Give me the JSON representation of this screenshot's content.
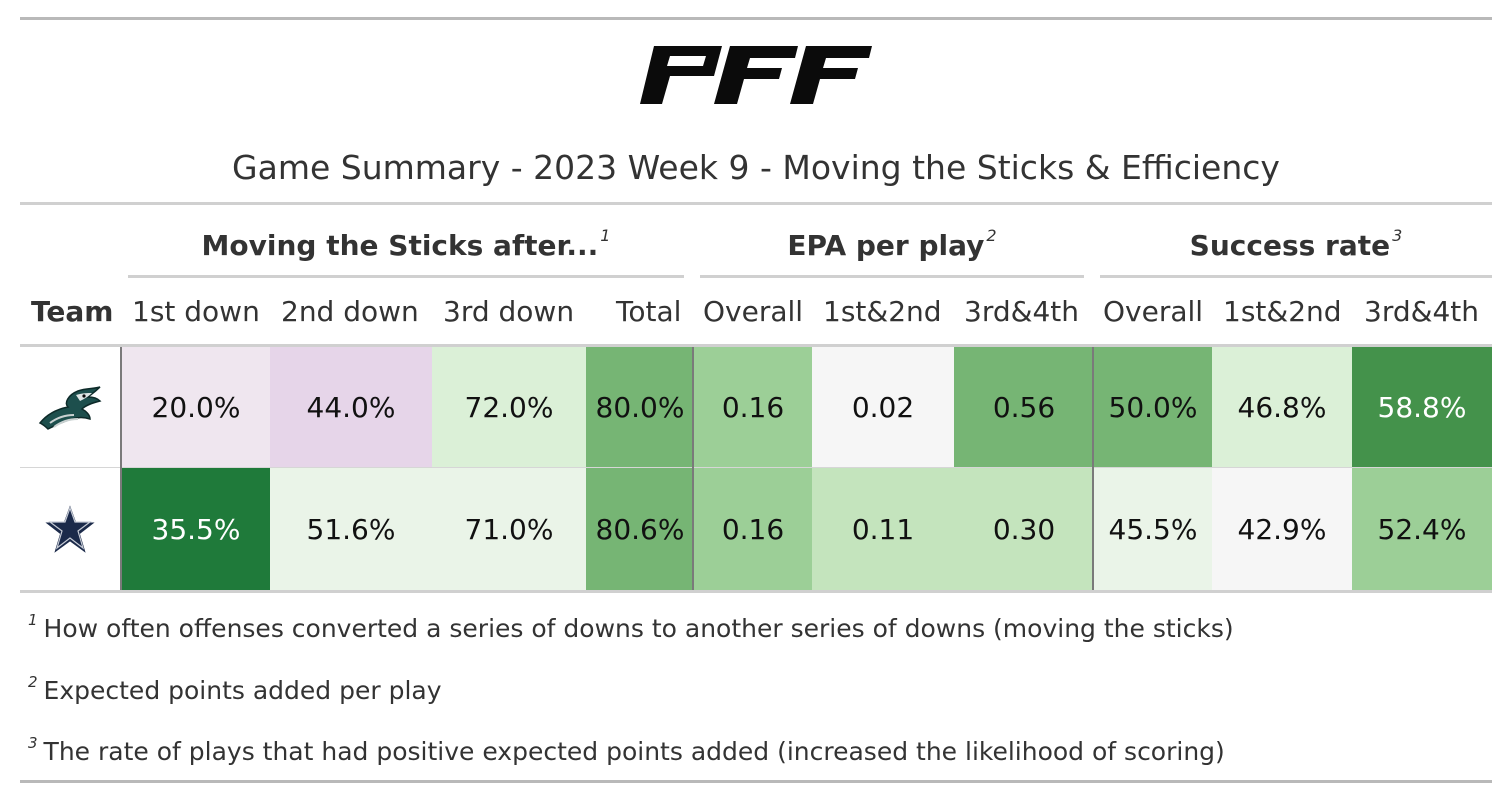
{
  "logo": {
    "icon": "pff-logo",
    "text": "PFF"
  },
  "title": "Game Summary - 2023 Week 9 - Moving the Sticks & Efficiency",
  "spanners": [
    {
      "label": "Moving the Sticks after...",
      "note": "1"
    },
    {
      "label": "EPA per play",
      "note": "2"
    },
    {
      "label": "Success rate",
      "note": "3"
    }
  ],
  "columns": [
    "Team",
    "1st down",
    "2nd down",
    "3rd down",
    "Total",
    "Overall",
    "1st&2nd",
    "3rd&4th",
    "Overall",
    "1st&2nd",
    "3rd&4th"
  ],
  "rows": [
    {
      "team_icon": "eagles-logo-icon",
      "cells": [
        {
          "value": "20.0%",
          "bg": "#efe6ef"
        },
        {
          "value": "44.0%",
          "bg": "#e6d5e9"
        },
        {
          "value": "72.0%",
          "bg": "#dbf0d7"
        },
        {
          "value": "80.0%",
          "bg": "#76b574"
        },
        {
          "value": "0.16",
          "bg": "#9ccf97"
        },
        {
          "value": "0.02",
          "bg": "#f6f6f6"
        },
        {
          "value": "0.56",
          "bg": "#76b574"
        },
        {
          "value": "50.0%",
          "bg": "#76b574"
        },
        {
          "value": "46.8%",
          "bg": "#dbf0d7"
        },
        {
          "value": "58.8%",
          "bg": "#44924b",
          "light": true
        }
      ]
    },
    {
      "team_icon": "cowboys-star-icon",
      "cells": [
        {
          "value": "35.5%",
          "bg": "#1f7a3a",
          "light": true
        },
        {
          "value": "51.6%",
          "bg": "#eaf4e8"
        },
        {
          "value": "71.0%",
          "bg": "#eaf4e8"
        },
        {
          "value": "80.6%",
          "bg": "#76b574"
        },
        {
          "value": "0.16",
          "bg": "#9ccf97"
        },
        {
          "value": "0.11",
          "bg": "#c4e4bd"
        },
        {
          "value": "0.30",
          "bg": "#c4e4bd"
        },
        {
          "value": "45.5%",
          "bg": "#eaf4e8"
        },
        {
          "value": "42.9%",
          "bg": "#f6f6f6"
        },
        {
          "value": "52.4%",
          "bg": "#9ccf97"
        }
      ]
    }
  ],
  "footnotes": [
    {
      "mark": "1",
      "text": "How often offenses converted a series of downs to another series of downs (moving the sticks)"
    },
    {
      "mark": "2",
      "text": "Expected points added per play"
    },
    {
      "mark": "3",
      "text": "The rate of plays that had positive expected points added (increased the likelihood of scoring)"
    }
  ]
}
